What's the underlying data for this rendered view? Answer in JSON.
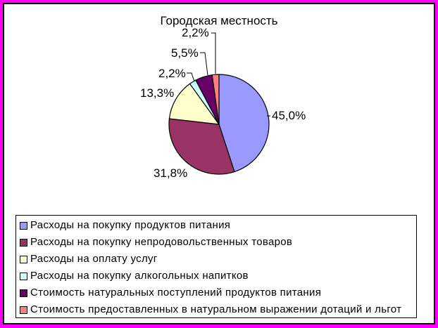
{
  "window": {
    "outer_border_color": "#FF00FF",
    "frame_color": "#000000",
    "background": "#FFFFFF"
  },
  "chart_data": {
    "type": "pie",
    "title": "Городская местность",
    "legend_position": "bottom",
    "direction": "clockwise",
    "start_angle_deg": 0,
    "units": "%",
    "slices": [
      {
        "label": "Расходы на покупку продуктов питания",
        "value": 45.0,
        "percent_label": "45,0%",
        "color": "#9999FF"
      },
      {
        "label": "Расходы на покупку непродовольственных товаров",
        "value": 31.8,
        "percent_label": "31,8%",
        "color": "#993366"
      },
      {
        "label": "Расходы на оплату услуг",
        "value": 13.3,
        "percent_label": "13,3%",
        "color": "#FFFFCC"
      },
      {
        "label": "Расходы на покупку алкогольных напитков",
        "value": 2.2,
        "percent_label": "2,2%",
        "color": "#CCFFFF"
      },
      {
        "label": "Стоимость натуральных поступлений продуктов питания",
        "value": 5.5,
        "percent_label": "5,5%",
        "color": "#660066"
      },
      {
        "label": "Стоимость предоставленных в натуральном выражении дотаций и льгот",
        "value": 2.2,
        "percent_label": "2,2%",
        "color": "#FF8080"
      }
    ]
  }
}
